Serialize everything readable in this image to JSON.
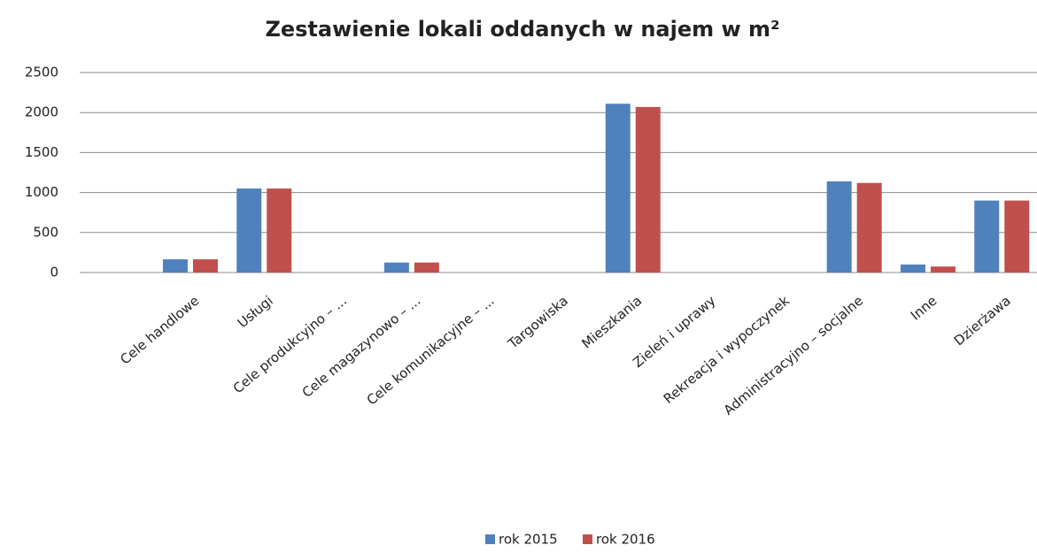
{
  "chart_data": {
    "type": "bar",
    "title": "Zestawienie lokali oddanych w najem w m²",
    "categories": [
      null,
      "Cele handlowe",
      "Usługi",
      "Cele produkcyjno – ...",
      "Cele magazynowo – ...",
      "Cele komunikacyjne – ...",
      "Targowiska",
      "Mieszkania",
      "Zieleń i uprawy",
      "Rekreacja i wypoczynek",
      "Administracyjno – socjalne",
      "Inne",
      "Dzierżawa"
    ],
    "series": [
      {
        "name": "rok 2015",
        "color": "#4f81bd",
        "values": [
          null,
          165,
          1050,
          0,
          125,
          0,
          0,
          2110,
          0,
          0,
          1140,
          100,
          900
        ]
      },
      {
        "name": "rok 2016",
        "color": "#c0504d",
        "values": [
          null,
          165,
          1050,
          0,
          125,
          0,
          0,
          2070,
          0,
          0,
          1120,
          75,
          900
        ]
      }
    ],
    "ylim": [
      0,
      2500
    ],
    "yticks": [
      0,
      500,
      1000,
      1500,
      2000,
      2500
    ],
    "grid": true,
    "legend": "bottom"
  }
}
